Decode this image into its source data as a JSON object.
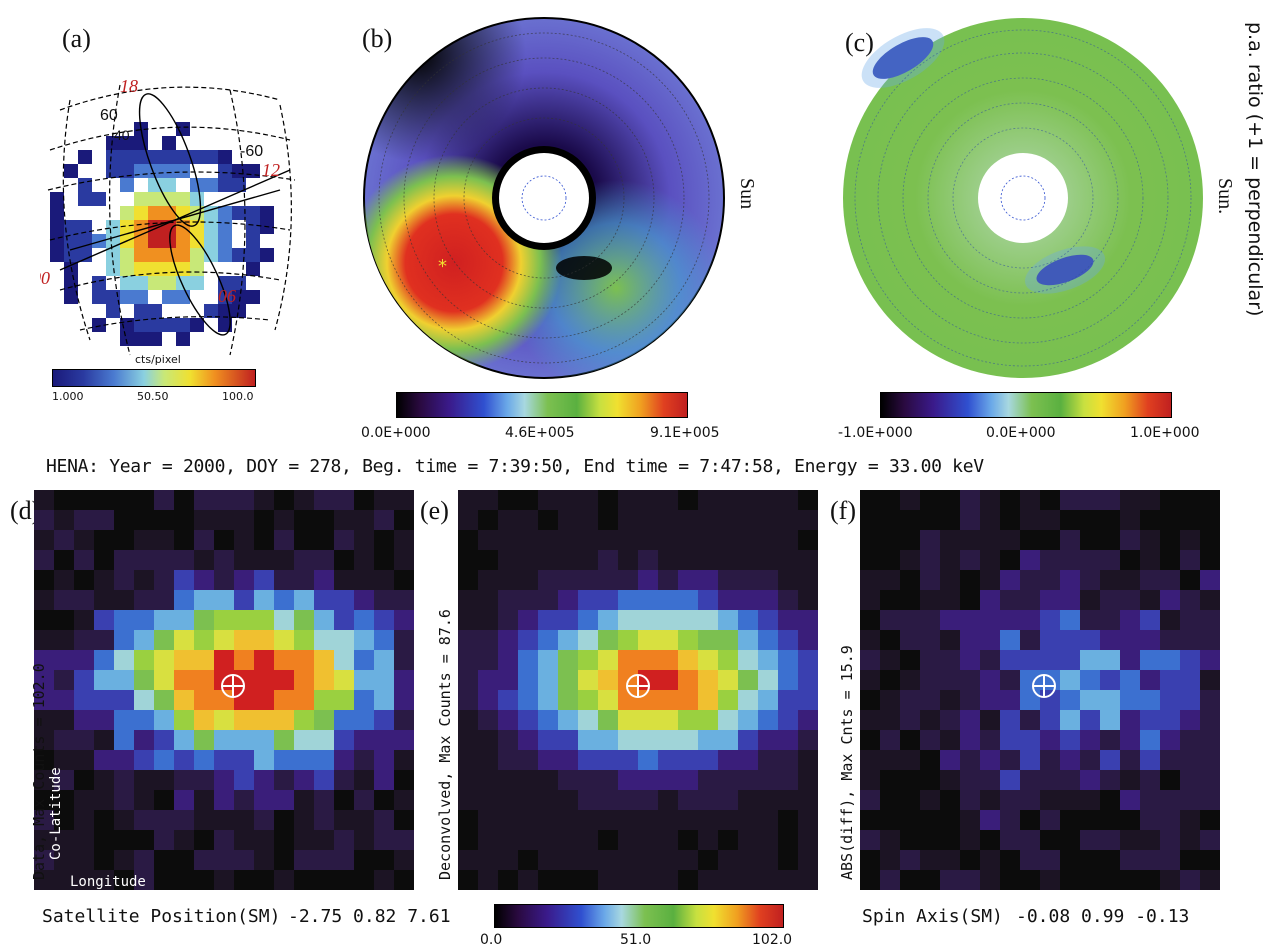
{
  "panel_labels": {
    "a": "(a)",
    "b": "(b)",
    "c": "(c)",
    "d": "(d)",
    "e": "(e)",
    "f": "(f)"
  },
  "panel_a": {
    "colorbar_title": "cts/pixel",
    "colorbar_ticks": [
      "1.000",
      "50.50",
      "100.0"
    ],
    "grid_labels": [
      "18",
      "60",
      "40",
      "-60",
      "12",
      "00",
      "06",
      "-15"
    ]
  },
  "panel_b": {
    "sun_label": "Sun",
    "colorbar_ticks": [
      "0.0E+000",
      "4.6E+005",
      "9.1E+005"
    ],
    "marker": "*"
  },
  "panel_c": {
    "sun_label": "Sun.",
    "colorbar_ticks": [
      "-1.0E+000",
      "0.0E+000",
      "1.0E+000"
    ],
    "side_title": "p.a. ratio (+1 = perpendicular)"
  },
  "header": {
    "line": "HENA: Year = 2000, DOY = 278, Beg. time =  7:39:50, End time =  7:47:58, Energy =   33.00 keV"
  },
  "panel_d": {
    "side_label": "Data, Max Counts = 102.0",
    "co_latitude": "Co-Latitude",
    "longitude": "Longitude"
  },
  "panel_e": {
    "side_label": "Deconvolved, Max Counts =  87.6"
  },
  "panel_f": {
    "side_label": "ABS(diff), Max Cnts =  15.9"
  },
  "footer": {
    "satellite_label": "Satellite Position(SM)",
    "satellite_values": "-2.75   0.82   7.61",
    "colorbar_ticks": [
      "0.0",
      "51.0",
      "102.0"
    ],
    "spin_label": "Spin Axis(SM)",
    "spin_values": "-0.08   0.99  -0.13"
  },
  "colors": {
    "background": "#ffffff",
    "pixel_background": "#0a0a0a"
  }
}
